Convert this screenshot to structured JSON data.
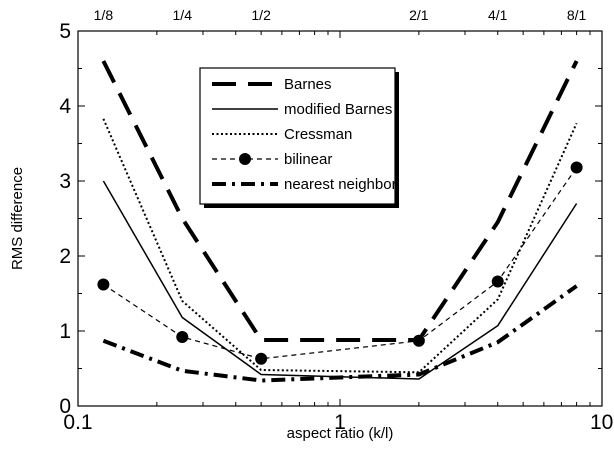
{
  "chart_data": {
    "type": "line",
    "xlabel": "aspect ratio (k/l)",
    "ylabel": "RMS difference",
    "x_scale": "log",
    "xlim": [
      0.1,
      10
    ],
    "ylim": [
      0,
      5
    ],
    "x_ticks": [
      "0.1",
      "1",
      "10"
    ],
    "y_ticks": [
      "0",
      "1",
      "2",
      "3",
      "4",
      "5"
    ],
    "top_ticks": [
      {
        "x": 0.125,
        "label": "1/8"
      },
      {
        "x": 0.25,
        "label": "1/4"
      },
      {
        "x": 0.5,
        "label": "1/2"
      },
      {
        "x": 2,
        "label": "2/1"
      },
      {
        "x": 4,
        "label": "4/1"
      },
      {
        "x": 8,
        "label": "8/1"
      }
    ],
    "legend_position": "top-center",
    "x": [
      0.125,
      0.25,
      0.5,
      2,
      4,
      8
    ],
    "series": [
      {
        "name": "Barnes",
        "style": "long-dash",
        "values": [
          4.6,
          2.5,
          0.88,
          0.88,
          2.45,
          4.6
        ]
      },
      {
        "name": "modified Barnes",
        "style": "solid",
        "values": [
          3.0,
          1.18,
          0.42,
          0.36,
          1.07,
          2.7
        ]
      },
      {
        "name": "Cressman",
        "style": "dotted",
        "values": [
          3.83,
          1.4,
          0.48,
          0.45,
          1.42,
          3.77
        ]
      },
      {
        "name": "bilinear",
        "style": "dashed-markers",
        "values": [
          1.62,
          0.92,
          0.63,
          0.87,
          1.66,
          3.18
        ]
      },
      {
        "name": "nearest neighbor",
        "style": "dash-dot",
        "values": [
          0.87,
          0.47,
          0.34,
          0.42,
          0.85,
          1.6
        ]
      }
    ]
  }
}
